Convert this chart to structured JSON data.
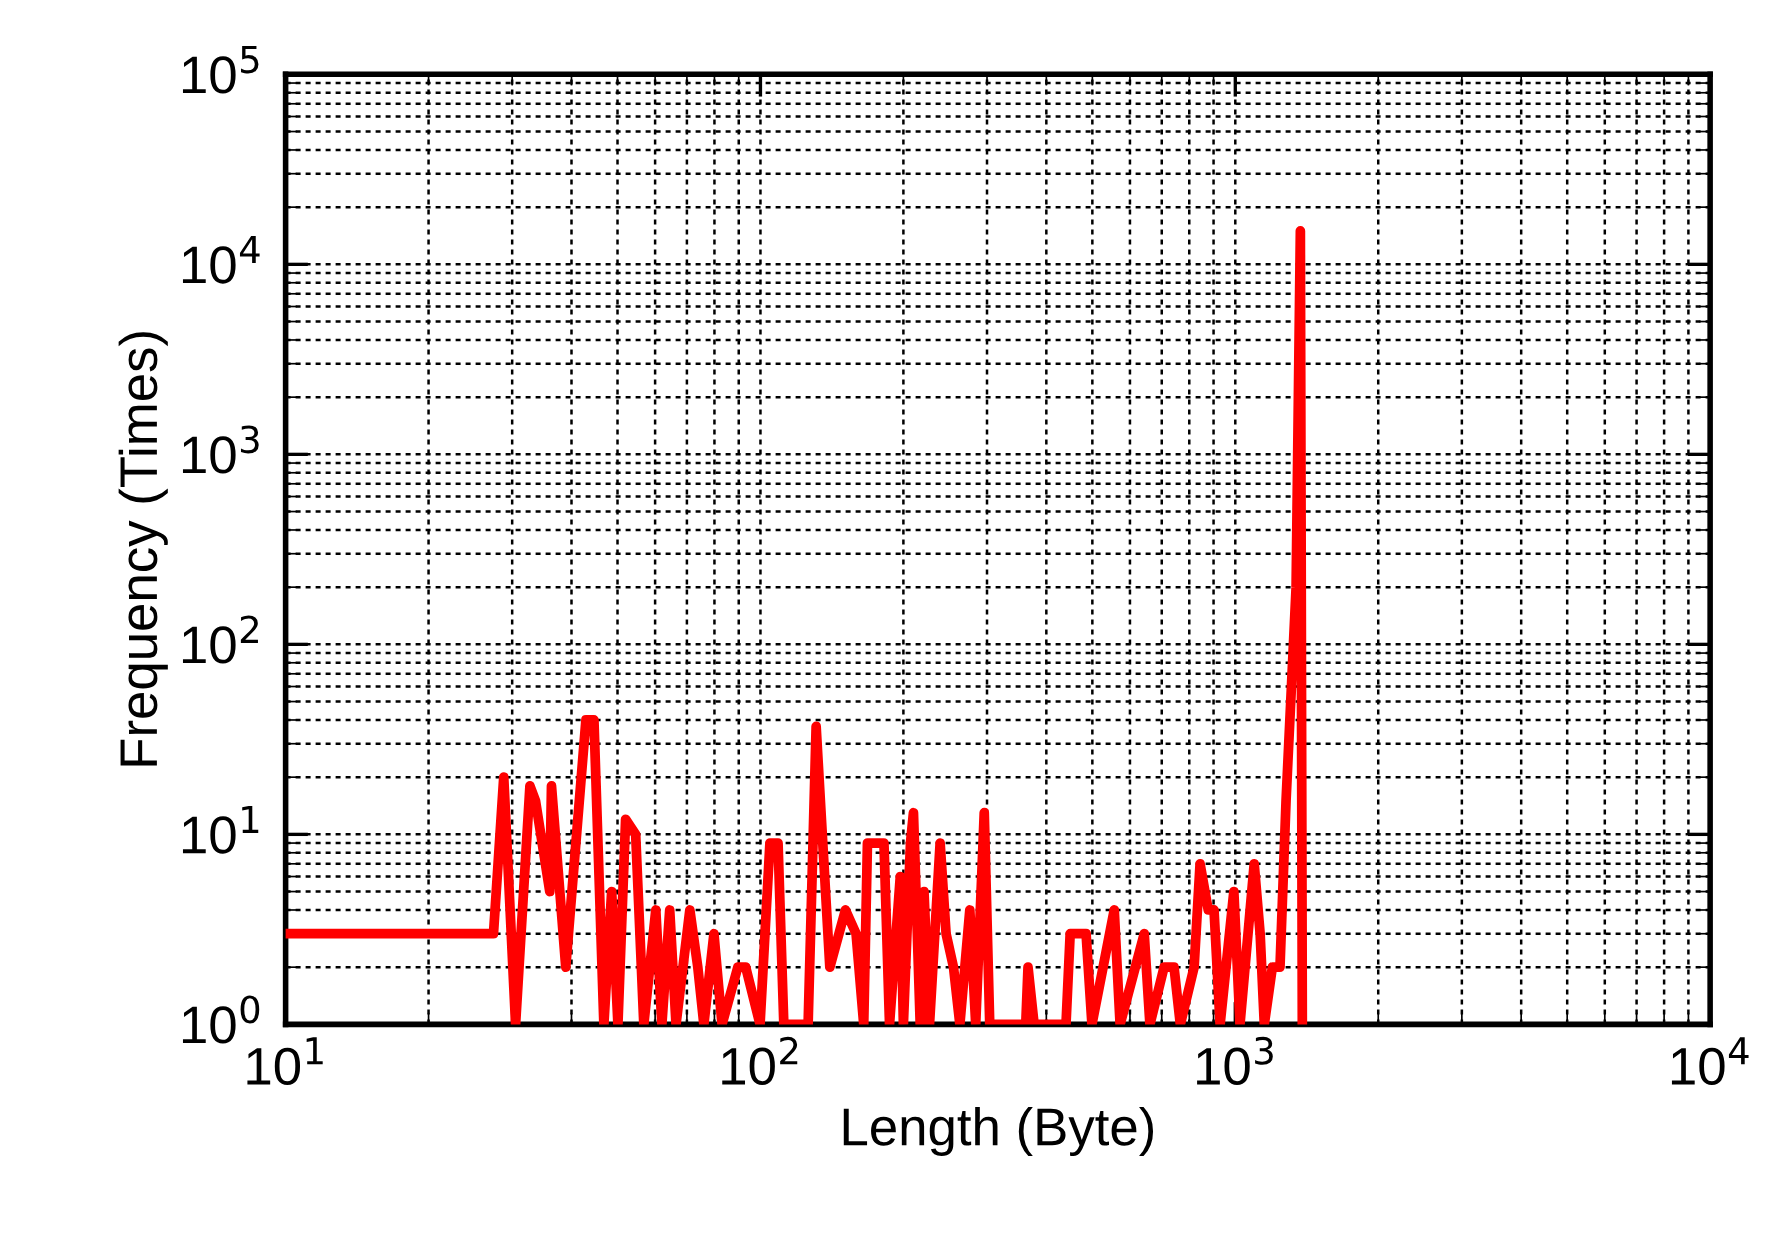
{
  "chart_data": {
    "type": "line",
    "xlabel": "Length (Byte)",
    "ylabel": "Frequency (Times)",
    "log": "xy",
    "xlim": [
      10,
      10000
    ],
    "ylim": [
      1,
      100000
    ],
    "xticks": [
      {
        "value": 10,
        "label": "10$^{1}$"
      },
      {
        "value": 100,
        "label": "10$^{2}$"
      },
      {
        "value": 1000,
        "label": "10$^{3}$"
      },
      {
        "value": 10000,
        "label": "10$^{4}$"
      }
    ],
    "yticks": [
      {
        "value": 1,
        "label": "10$^{0}$"
      },
      {
        "value": 10,
        "label": "10$^{1}$"
      },
      {
        "value": 100,
        "label": "10$^{2}$"
      },
      {
        "value": 1000,
        "label": "10$^{3}$"
      },
      {
        "value": 10000,
        "label": "10$^{4}$"
      },
      {
        "value": 100000,
        "label": "10$^{5}$"
      }
    ],
    "grid": true,
    "marker": "none",
    "line_style": "solid",
    "series": [
      {
        "color": "#ff0000",
        "x": [
          10,
          27.4,
          28.8,
          30.5,
          32.7,
          33.6,
          36.0,
          36.3,
          37.8,
          38.9,
          42.9,
          44.6,
          46.8,
          48.6,
          50.1,
          52,
          54.6,
          56.8,
          60.2,
          62,
          64.4,
          66.4,
          71,
          73.8,
          76,
          79.8,
          83,
          89.6,
          93.1,
          99.8,
          104.7,
          108.9,
          112,
          126,
          131,
          140,
          151,
          159,
          165,
          168,
          182,
          187,
          197,
          200,
          207,
          210,
          217,
          221,
          227,
          239,
          246,
          255,
          263,
          276,
          284,
          296,
          304,
          362,
          366,
          377,
          440,
          449,
          485,
          499,
          556,
          572,
          643,
          661,
          708,
          743,
          766,
          819,
          843,
          877,
          902,
          929,
          993,
          1023,
          1096,
          1128,
          1151,
          1197,
          1242,
          1279,
          1343,
          1371,
          1384
        ],
        "values": [
          3,
          3,
          20,
          1,
          18,
          15,
          5,
          18,
          5,
          2,
          40,
          40,
          1,
          5,
          1,
          12,
          10,
          1,
          4,
          1,
          4,
          1,
          4,
          2,
          1,
          3,
          1,
          2,
          2,
          1,
          9,
          9,
          1,
          1,
          37,
          2,
          4,
          3,
          1,
          9,
          9,
          1,
          6,
          1,
          9,
          13,
          1,
          5,
          1,
          9,
          3,
          2,
          1,
          4,
          1,
          13,
          1,
          1,
          2,
          1,
          1,
          3,
          3,
          1,
          4,
          1,
          3,
          1,
          2,
          2,
          1,
          2,
          7,
          4,
          4,
          1,
          5,
          1,
          7,
          3,
          1,
          2,
          2,
          15,
          200,
          15000,
          1
        ]
      }
    ]
  }
}
